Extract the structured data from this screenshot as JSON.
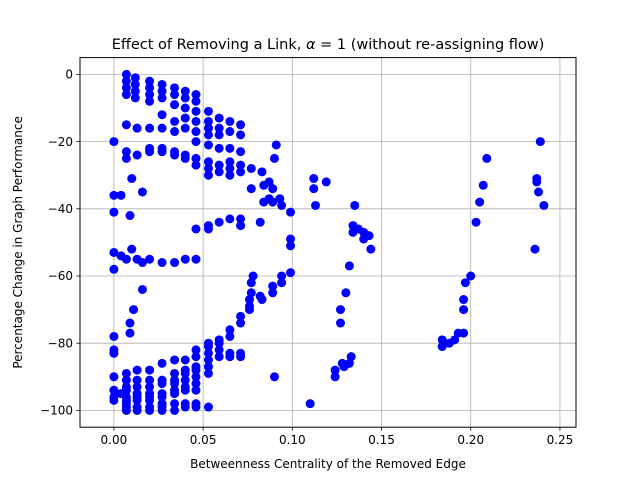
{
  "chart_data": {
    "type": "scatter",
    "title_prefix": "Effect of Removing a Link, ",
    "title_symbol": "α",
    "title_suffix": " = 1 (without re-assigning flow)",
    "xlabel": "Betweenness Centrality of the Removed Edge",
    "ylabel": "Percentage Change in Graph Performance",
    "xlim": [
      -0.019,
      0.259
    ],
    "ylim": [
      -105,
      5
    ],
    "x_ticks": [
      0.0,
      0.05,
      0.1,
      0.15,
      0.2,
      0.25
    ],
    "x_tick_labels": [
      "0.00",
      "0.05",
      "0.10",
      "0.15",
      "0.20",
      "0.25"
    ],
    "y_ticks": [
      0,
      -20,
      -40,
      -60,
      -80,
      -100
    ],
    "y_tick_labels": [
      "0",
      "−20",
      "−40",
      "−60",
      "−80",
      "−100"
    ],
    "grid": true,
    "point_color": "#0000ff",
    "points": [
      [
        0.007,
        0
      ],
      [
        0.007,
        -2
      ],
      [
        0.007,
        -4
      ],
      [
        0.007,
        -6
      ],
      [
        0.012,
        -1
      ],
      [
        0.012,
        -3
      ],
      [
        0.012,
        -5
      ],
      [
        0.012,
        -7
      ],
      [
        0.02,
        -2
      ],
      [
        0.02,
        -4
      ],
      [
        0.02,
        -6
      ],
      [
        0.02,
        -8
      ],
      [
        0.027,
        -3
      ],
      [
        0.027,
        -5
      ],
      [
        0.027,
        -7
      ],
      [
        0.034,
        -4
      ],
      [
        0.034,
        -6
      ],
      [
        0.034,
        -9
      ],
      [
        0.04,
        -5
      ],
      [
        0.04,
        -7
      ],
      [
        0.04,
        -10
      ],
      [
        0.046,
        -6
      ],
      [
        0.046,
        -8
      ],
      [
        0.046,
        -11
      ],
      [
        0.007,
        -15
      ],
      [
        0.013,
        -16
      ],
      [
        0.02,
        -16
      ],
      [
        0.027,
        -12
      ],
      [
        0.027,
        -16
      ],
      [
        0.034,
        -14
      ],
      [
        0.034,
        -17
      ],
      [
        0.04,
        -13
      ],
      [
        0.04,
        -16
      ],
      [
        0.046,
        -14
      ],
      [
        0.046,
        -17
      ],
      [
        0.053,
        -11
      ],
      [
        0.053,
        -14
      ],
      [
        0.053,
        -16
      ],
      [
        0.053,
        -18
      ],
      [
        0.059,
        -13
      ],
      [
        0.059,
        -16
      ],
      [
        0.059,
        -18
      ],
      [
        0.065,
        -14
      ],
      [
        0.065,
        -17
      ],
      [
        0.071,
        -15
      ],
      [
        0.071,
        -18
      ],
      [
        0.0,
        -20
      ],
      [
        0.046,
        -20
      ],
      [
        0.053,
        -21
      ],
      [
        0.059,
        -22
      ],
      [
        0.065,
        -22
      ],
      [
        0.071,
        -23
      ],
      [
        0.007,
        -23
      ],
      [
        0.007,
        -25
      ],
      [
        0.013,
        -24
      ],
      [
        0.02,
        -23
      ],
      [
        0.02,
        -22
      ],
      [
        0.027,
        -22
      ],
      [
        0.027,
        -23
      ],
      [
        0.034,
        -23
      ],
      [
        0.034,
        -24
      ],
      [
        0.04,
        -24
      ],
      [
        0.04,
        -25
      ],
      [
        0.046,
        -25
      ],
      [
        0.046,
        -27
      ],
      [
        0.053,
        -26
      ],
      [
        0.053,
        -28
      ],
      [
        0.053,
        -30
      ],
      [
        0.059,
        -27
      ],
      [
        0.059,
        -29
      ],
      [
        0.065,
        -26
      ],
      [
        0.065,
        -28
      ],
      [
        0.065,
        -30
      ],
      [
        0.071,
        -27
      ],
      [
        0.071,
        -29
      ],
      [
        0.077,
        -28
      ],
      [
        0.083,
        -29
      ],
      [
        0.084,
        -33
      ],
      [
        0.087,
        -32
      ],
      [
        0.089,
        -34
      ],
      [
        0.09,
        -25
      ],
      [
        0.091,
        -21
      ],
      [
        0.087,
        -37
      ],
      [
        0.089,
        -38
      ],
      [
        0.093,
        -37
      ],
      [
        0.094,
        -39
      ],
      [
        0.099,
        -41
      ],
      [
        0.112,
        -31
      ],
      [
        0.112,
        -34
      ],
      [
        0.113,
        -39
      ],
      [
        0.119,
        -32
      ],
      [
        0.084,
        -38
      ],
      [
        0.082,
        -44
      ],
      [
        0.077,
        -34
      ],
      [
        0.0,
        -36
      ],
      [
        0.004,
        -36
      ],
      [
        0.01,
        -31
      ],
      [
        0.016,
        -35
      ],
      [
        0.0,
        -41
      ],
      [
        0.009,
        -42
      ],
      [
        0.046,
        -46
      ],
      [
        0.053,
        -45
      ],
      [
        0.053,
        -46
      ],
      [
        0.059,
        -44
      ],
      [
        0.065,
        -43
      ],
      [
        0.071,
        -43
      ],
      [
        0.071,
        -45
      ],
      [
        0.134,
        -45
      ],
      [
        0.134,
        -47
      ],
      [
        0.137,
        -46
      ],
      [
        0.14,
        -47
      ],
      [
        0.14,
        -49
      ],
      [
        0.143,
        -48
      ],
      [
        0.144,
        -52
      ],
      [
        0.135,
        -39
      ],
      [
        0.099,
        -49
      ],
      [
        0.099,
        -51
      ],
      [
        0.0,
        -53
      ],
      [
        0.004,
        -54
      ],
      [
        0.007,
        -55
      ],
      [
        0.01,
        -52
      ],
      [
        0.013,
        -55
      ],
      [
        0.016,
        -56
      ],
      [
        0.02,
        -55
      ],
      [
        0.027,
        -56
      ],
      [
        0.034,
        -56
      ],
      [
        0.04,
        -55
      ],
      [
        0.046,
        -55
      ],
      [
        0.0,
        -58
      ],
      [
        0.132,
        -57
      ],
      [
        0.099,
        -59
      ],
      [
        0.094,
        -60
      ],
      [
        0.094,
        -62
      ],
      [
        0.089,
        -63
      ],
      [
        0.078,
        -60
      ],
      [
        0.077,
        -62
      ],
      [
        0.077,
        -65
      ],
      [
        0.076,
        -67
      ],
      [
        0.082,
        -66
      ],
      [
        0.083,
        -67
      ],
      [
        0.089,
        -65
      ],
      [
        0.076,
        -69
      ],
      [
        0.076,
        -70
      ],
      [
        0.071,
        -72
      ],
      [
        0.071,
        -74
      ],
      [
        0.065,
        -76
      ],
      [
        0.065,
        -78
      ],
      [
        0.059,
        -79
      ],
      [
        0.059,
        -80
      ],
      [
        0.053,
        -81
      ],
      [
        0.053,
        -80
      ],
      [
        0.046,
        -82
      ],
      [
        0.046,
        -84
      ],
      [
        0.04,
        -85
      ],
      [
        0.034,
        -85
      ],
      [
        0.027,
        -86
      ],
      [
        0.02,
        -88
      ],
      [
        0.013,
        -88
      ],
      [
        0.007,
        -89
      ],
      [
        0.016,
        -64
      ],
      [
        0.011,
        -70
      ],
      [
        0.009,
        -74
      ],
      [
        0.009,
        -77
      ],
      [
        0.13,
        -65
      ],
      [
        0.127,
        -70
      ],
      [
        0.127,
        -74
      ],
      [
        0.0,
        -78
      ],
      [
        0.0,
        -82
      ],
      [
        0.0,
        -83
      ],
      [
        0.0,
        -90
      ],
      [
        0.184,
        -79
      ],
      [
        0.184,
        -81
      ],
      [
        0.188,
        -80
      ],
      [
        0.191,
        -79
      ],
      [
        0.193,
        -77
      ],
      [
        0.196,
        -77
      ],
      [
        0.196,
        -70
      ],
      [
        0.196,
        -67
      ],
      [
        0.197,
        -62
      ],
      [
        0.2,
        -60
      ],
      [
        0.203,
        -44
      ],
      [
        0.205,
        -38
      ],
      [
        0.207,
        -33
      ],
      [
        0.209,
        -25
      ],
      [
        0.236,
        -52
      ],
      [
        0.237,
        -31
      ],
      [
        0.237,
        -32
      ],
      [
        0.238,
        -35
      ],
      [
        0.239,
        -20
      ],
      [
        0.241,
        -39
      ],
      [
        0.053,
        -83
      ],
      [
        0.059,
        -82
      ],
      [
        0.059,
        -84
      ],
      [
        0.065,
        -83
      ],
      [
        0.065,
        -84
      ],
      [
        0.071,
        -83
      ],
      [
        0.071,
        -84
      ],
      [
        0.053,
        -85
      ],
      [
        0.053,
        -87
      ],
      [
        0.046,
        -87
      ],
      [
        0.046,
        -88
      ],
      [
        0.04,
        -88
      ],
      [
        0.04,
        -89
      ],
      [
        0.034,
        -89
      ],
      [
        0.034,
        -91
      ],
      [
        0.027,
        -91
      ],
      [
        0.02,
        -91
      ],
      [
        0.013,
        -91
      ],
      [
        0.007,
        -91
      ],
      [
        0.007,
        -93
      ],
      [
        0.013,
        -93
      ],
      [
        0.02,
        -93
      ],
      [
        0.027,
        -92
      ],
      [
        0.034,
        -92
      ],
      [
        0.04,
        -91
      ],
      [
        0.046,
        -90
      ],
      [
        0.053,
        -89
      ],
      [
        0.09,
        -90
      ],
      [
        0.124,
        -88
      ],
      [
        0.124,
        -90
      ],
      [
        0.128,
        -86
      ],
      [
        0.129,
        -87
      ],
      [
        0.132,
        -86
      ],
      [
        0.133,
        -84
      ],
      [
        0.0,
        -94
      ],
      [
        0.0,
        -96
      ],
      [
        0.0,
        -97
      ],
      [
        0.004,
        -95
      ],
      [
        0.007,
        -94
      ],
      [
        0.007,
        -96
      ],
      [
        0.007,
        -97
      ],
      [
        0.007,
        -98
      ],
      [
        0.007,
        -99
      ],
      [
        0.007,
        -100
      ],
      [
        0.013,
        -95
      ],
      [
        0.013,
        -96
      ],
      [
        0.013,
        -97
      ],
      [
        0.013,
        -99
      ],
      [
        0.013,
        -100
      ],
      [
        0.02,
        -95
      ],
      [
        0.02,
        -96
      ],
      [
        0.02,
        -97
      ],
      [
        0.02,
        -99
      ],
      [
        0.02,
        -100
      ],
      [
        0.027,
        -95
      ],
      [
        0.027,
        -96
      ],
      [
        0.027,
        -98
      ],
      [
        0.027,
        -99
      ],
      [
        0.027,
        -100
      ],
      [
        0.034,
        -94
      ],
      [
        0.034,
        -95
      ],
      [
        0.034,
        -98
      ],
      [
        0.034,
        -100
      ],
      [
        0.04,
        -93
      ],
      [
        0.04,
        -94
      ],
      [
        0.04,
        -98
      ],
      [
        0.04,
        -99
      ],
      [
        0.046,
        -92
      ],
      [
        0.046,
        -94
      ],
      [
        0.046,
        -98
      ],
      [
        0.046,
        -99
      ],
      [
        0.053,
        -99
      ],
      [
        0.11,
        -98
      ]
    ]
  }
}
